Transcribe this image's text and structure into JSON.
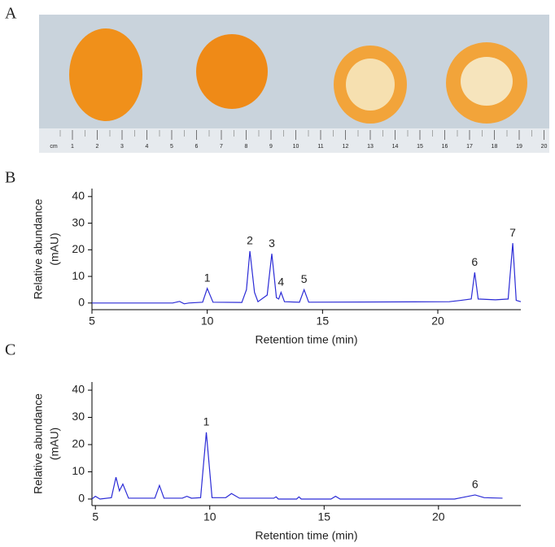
{
  "panel_labels": [
    "A",
    "B",
    "C"
  ],
  "photo": {
    "ruler_unit": "cm",
    "ruler_labels": [
      1,
      2,
      3,
      4,
      5,
      6,
      7,
      8,
      9,
      10,
      11,
      12,
      13,
      14,
      15,
      16,
      17,
      18,
      19,
      20
    ]
  },
  "chart_data": [
    {
      "type": "line",
      "xlabel": "Retention time (min)",
      "ylabel": [
        "Relative abundance",
        "(mAU)"
      ],
      "color": "#2b2bd6",
      "xlim": [
        5,
        23.6
      ],
      "ylim": [
        -2.5,
        43
      ],
      "xticks": [
        5,
        10,
        15,
        20
      ],
      "yticks": [
        0,
        10,
        20,
        30,
        40
      ],
      "x": [
        5,
        8.5,
        8.8,
        9.0,
        9.2,
        9.8,
        10.0,
        10.25,
        11.5,
        11.7,
        11.85,
        12.05,
        12.2,
        12.6,
        12.8,
        13.0,
        13.1,
        13.2,
        13.35,
        14.0,
        14.2,
        14.4,
        20.5,
        21.0,
        21.45,
        21.6,
        21.75,
        22.5,
        23.05,
        23.25,
        23.4,
        23.6
      ],
      "values": [
        0,
        0,
        0.6,
        -0.3,
        0,
        0.3,
        5.5,
        0.3,
        0.2,
        5,
        19.5,
        4,
        0.5,
        3,
        18.5,
        2,
        1.5,
        4,
        0.5,
        0.3,
        5,
        0.3,
        0.5,
        1,
        1.5,
        11.5,
        1.5,
        1.2,
        1.5,
        22.5,
        1,
        0.5
      ],
      "annotations": [
        {
          "text": "1",
          "x": 10.0
        },
        {
          "text": "2",
          "x": 11.85
        },
        {
          "text": "3",
          "x": 12.8
        },
        {
          "text": "4",
          "x": 13.2
        },
        {
          "text": "5",
          "x": 14.2
        },
        {
          "text": "6",
          "x": 21.6
        },
        {
          "text": "7",
          "x": 23.25
        }
      ]
    },
    {
      "type": "line",
      "xlabel": "Retention time (min)",
      "ylabel": [
        "Relative abundance",
        "(mAU)"
      ],
      "color": "#2b2bd6",
      "xlim": [
        4.85,
        23.6
      ],
      "ylim": [
        -2.4,
        43
      ],
      "xticks": [
        5,
        10,
        15,
        20
      ],
      "yticks": [
        0,
        10,
        20,
        30,
        40
      ],
      "x": [
        4.85,
        5.0,
        5.2,
        5.7,
        5.9,
        6.05,
        6.2,
        6.45,
        7.6,
        7.8,
        8.0,
        8.8,
        9.0,
        9.2,
        9.6,
        9.85,
        10.1,
        10.7,
        10.95,
        11.3,
        12.8,
        12.9,
        13.0,
        13.8,
        13.9,
        14.0,
        15.3,
        15.5,
        15.7,
        20.7,
        21.0,
        21.6,
        22.0,
        22.8
      ],
      "values": [
        0,
        1,
        0,
        0.5,
        8,
        3,
        5.5,
        0.3,
        0.3,
        5,
        0.3,
        0.3,
        1,
        0.3,
        0.5,
        24.5,
        0.5,
        0.5,
        2,
        0.3,
        0.3,
        0.8,
        0,
        0,
        0.8,
        0,
        0,
        1,
        0,
        0,
        0.5,
        1.5,
        0.5,
        0.3
      ],
      "annotations": [
        {
          "text": "1",
          "x": 9.85
        },
        {
          "text": "6",
          "x": 21.6
        }
      ]
    }
  ]
}
